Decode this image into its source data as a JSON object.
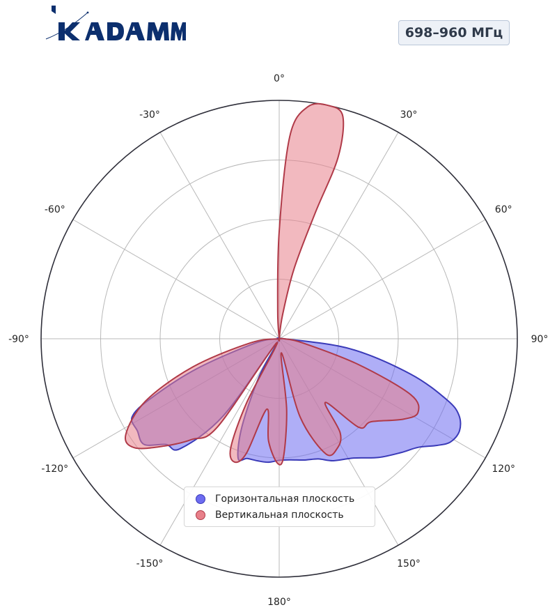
{
  "header": {
    "brand_name": "KADAMM",
    "frequency_badge": "698–960 МГц"
  },
  "colors": {
    "brand": "#0c2f6e",
    "horizontal_fill": "#6d6cf0",
    "horizontal_stroke": "#3a3ab8",
    "vertical_fill": "#e8808a",
    "vertical_stroke": "#b03a48",
    "grid": "#b8b8b8",
    "outer_ring": "#2f2f3a"
  },
  "chart_data": {
    "type": "polar",
    "theta_unit": "deg",
    "theta_zero": "top",
    "theta_direction": "clockwise",
    "angle_ticks": [
      0,
      30,
      60,
      90,
      120,
      150,
      180,
      -150,
      -120,
      -90,
      -60,
      -30
    ],
    "angle_tick_labels": [
      "0°",
      "30°",
      "60°",
      "90°",
      "120°",
      "150°",
      "180°",
      "-150°",
      "-120°",
      "-90°",
      "-60°",
      "-30°"
    ],
    "radial_range": [
      0,
      1
    ],
    "radial_rings": [
      0.25,
      0.5,
      0.75,
      1.0
    ],
    "radial_tick_labels_shown": false,
    "grid": true,
    "legend_placement": "bottom-center",
    "series": [
      {
        "name": "Горизонтальная плоскость",
        "points": [
          [
            -90,
            0
          ],
          [
            -60,
            0
          ],
          [
            -30,
            0
          ],
          [
            0,
            0
          ],
          [
            30,
            0
          ],
          [
            60,
            0
          ],
          [
            90,
            0.02
          ],
          [
            98,
            0.3
          ],
          [
            105,
            0.57
          ],
          [
            110,
            0.75
          ],
          [
            113,
            0.82
          ],
          [
            117,
            0.85
          ],
          [
            121,
            0.84
          ],
          [
            124,
            0.8
          ],
          [
            128,
            0.74
          ],
          [
            133,
            0.7
          ],
          [
            140,
            0.65
          ],
          [
            148,
            0.59
          ],
          [
            156,
            0.56
          ],
          [
            162,
            0.53
          ],
          [
            168,
            0.52
          ],
          [
            175,
            0.51
          ],
          [
            180,
            0.51
          ],
          [
            185,
            0.52
          ],
          [
            190,
            0.52
          ],
          [
            195,
            0.52
          ],
          [
            199,
            0.53
          ],
          [
            203,
            0.4
          ],
          [
            208,
            0.18
          ],
          [
            212,
            0.02
          ],
          [
            216,
            0.4
          ],
          [
            222,
            0.62
          ],
          [
            227,
            0.65
          ],
          [
            232,
            0.72
          ],
          [
            237,
            0.71
          ],
          [
            242,
            0.7
          ],
          [
            245,
            0.6
          ],
          [
            250,
            0.37
          ],
          [
            260,
            0.1
          ],
          [
            270,
            0
          ]
        ]
      },
      {
        "name": "Вертикальная плоскость",
        "points": [
          [
            -90,
            0
          ],
          [
            -40,
            0
          ],
          [
            -10,
            0
          ],
          [
            -3,
            0.12
          ],
          [
            0,
            0.45
          ],
          [
            3,
            0.85
          ],
          [
            7,
            0.98
          ],
          [
            12,
            1.0
          ],
          [
            16,
            0.97
          ],
          [
            18,
            0.8
          ],
          [
            16,
            0.55
          ],
          [
            12,
            0.3
          ],
          [
            8,
            0.1
          ],
          [
            4,
            0
          ],
          [
            60,
            0
          ],
          [
            90,
            0.02
          ],
          [
            100,
            0.1
          ],
          [
            108,
            0.35
          ],
          [
            113,
            0.6
          ],
          [
            118,
            0.66
          ],
          [
            123,
            0.62
          ],
          [
            132,
            0.52
          ],
          [
            138,
            0.5
          ],
          [
            144,
            0.33
          ],
          [
            147,
            0.47
          ],
          [
            152,
            0.52
          ],
          [
            158,
            0.52
          ],
          [
            165,
            0.34
          ],
          [
            171,
            0.06
          ],
          [
            174,
            0.3
          ],
          [
            178,
            0.5
          ],
          [
            181,
            0.52
          ],
          [
            186,
            0.43
          ],
          [
            190,
            0.3
          ],
          [
            196,
            0.5
          ],
          [
            200,
            0.55
          ],
          [
            204,
            0.5
          ],
          [
            207,
            0.3
          ],
          [
            212,
            0.02
          ],
          [
            215,
            0.45
          ],
          [
            221,
            0.56
          ],
          [
            227,
            0.66
          ],
          [
            233,
            0.76
          ],
          [
            238,
            0.76
          ],
          [
            245,
            0.62
          ],
          [
            252,
            0.38
          ],
          [
            262,
            0.12
          ],
          [
            270,
            0
          ]
        ]
      }
    ]
  }
}
